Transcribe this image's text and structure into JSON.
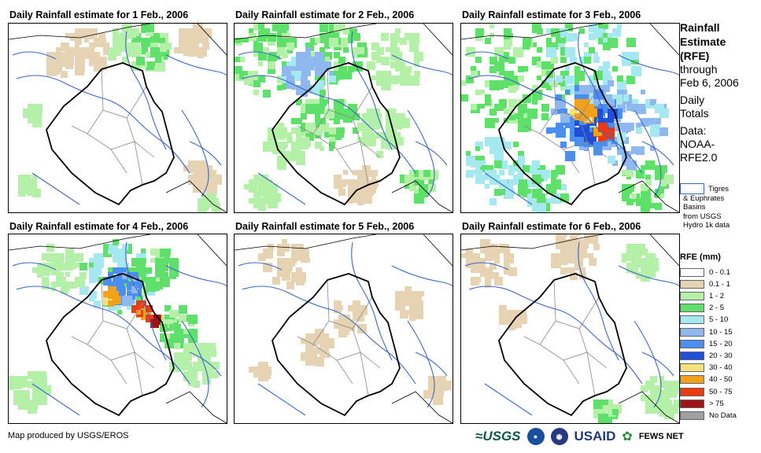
{
  "panels": [
    {
      "title": "Daily Rainfall estimate for 1 Feb., 2006"
    },
    {
      "title": "Daily Rainfall estimate for 2 Feb., 2006"
    },
    {
      "title": "Daily Rainfall estimate for 3 Feb., 2006"
    },
    {
      "title": "Daily Rainfall estimate for 4 Feb., 2006"
    },
    {
      "title": "Daily Rainfall estimate for 5 Feb., 2006"
    },
    {
      "title": "Daily Rainfall estimate for 6 Feb., 2006"
    }
  ],
  "legend": {
    "title_line1": "Rainfall",
    "title_line2": "Estimate",
    "title_line3": "(RFE)",
    "through": "through",
    "date": "Feb 6, 2006",
    "daily1": "Daily",
    "daily2": "Totals",
    "data1": "Data:",
    "data2": "NOAA-",
    "data3": "RFE2.0",
    "basin_text1": "Tigres",
    "basin_text2": "& Euphrates",
    "basin_text3": "Basins",
    "basin_text4": "from USGS",
    "basin_text5": "Hydro 1k data",
    "rfe_title": "RFE (mm)",
    "classes": [
      {
        "label": "0 - 0.1",
        "color": "#ffffff"
      },
      {
        "label": "0.1 - 1",
        "color": "#e6d3b3"
      },
      {
        "label": "1 - 2",
        "color": "#b4f0a8"
      },
      {
        "label": "2 - 5",
        "color": "#5ee06a"
      },
      {
        "label": "5 - 10",
        "color": "#a6e8f0"
      },
      {
        "label": "10 - 15",
        "color": "#8fb8ee"
      },
      {
        "label": "15 - 20",
        "color": "#4a8ef0"
      },
      {
        "label": "20 - 30",
        "color": "#1f4fd6"
      },
      {
        "label": "30 - 40",
        "color": "#f6e27a"
      },
      {
        "label": "40 - 50",
        "color": "#f2a21a"
      },
      {
        "label": "50 - 75",
        "color": "#ee3a12"
      },
      {
        "label": "> 75",
        "color": "#9e1414"
      },
      {
        "label": "No Data",
        "color": "#a0a0a0"
      }
    ]
  },
  "footer": {
    "credit": "Map produced by USGS/EROS"
  },
  "logos": {
    "usgs": "≈USGS",
    "usaid": "USAID",
    "fews": "FEWS NET"
  }
}
